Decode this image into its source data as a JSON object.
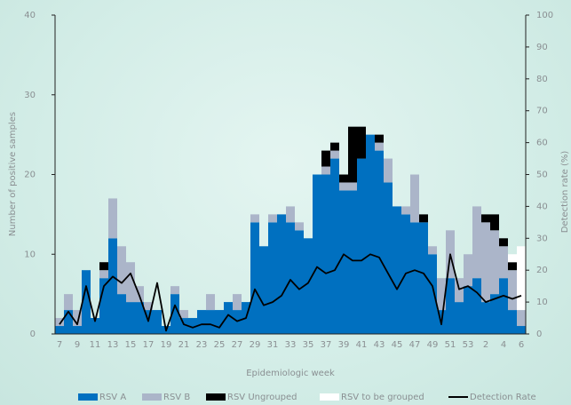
{
  "chart_data": {
    "type": "bar",
    "stacked": true,
    "x_label": "Epidemiologic week",
    "y_label": "Number of positive samples",
    "y2_label": "Detection rate (%)",
    "categories": [
      "7",
      null,
      "9",
      null,
      "11",
      null,
      "13",
      null,
      "15",
      null,
      "17",
      null,
      "19",
      null,
      "21",
      null,
      "23",
      null,
      "25",
      null,
      "27",
      null,
      "29",
      null,
      "31",
      null,
      "33",
      null,
      "35",
      null,
      "37",
      null,
      "39",
      null,
      "41",
      null,
      "43",
      null,
      "45",
      null,
      "47",
      null,
      "49",
      null,
      "51",
      null,
      "53",
      null,
      "2",
      null,
      "4",
      null,
      "6"
    ],
    "series": [
      {
        "name": "RSV A",
        "color": "#0070c0",
        "values": [
          1,
          3,
          1,
          8,
          2,
          7,
          12,
          5,
          4,
          4,
          3,
          3,
          1,
          5,
          2,
          2,
          3,
          3,
          3,
          4,
          3,
          4,
          14,
          11,
          14,
          15,
          14,
          13,
          12,
          20,
          20,
          22,
          18,
          18,
          22,
          25,
          23,
          19,
          16,
          15,
          14,
          14,
          10,
          3,
          7,
          4,
          6,
          7,
          4,
          5,
          7,
          3,
          1
        ]
      },
      {
        "name": "RSV B",
        "color": "#abb5c9",
        "values": [
          1,
          2,
          2,
          0,
          0,
          1,
          5,
          6,
          5,
          2,
          1,
          0,
          0,
          1,
          1,
          0,
          0,
          2,
          0,
          0,
          2,
          0,
          1,
          0,
          1,
          0,
          2,
          1,
          0,
          0,
          1,
          1,
          1,
          1,
          0,
          0,
          1,
          3,
          0,
          1,
          6,
          0,
          1,
          4,
          6,
          3,
          4,
          9,
          10,
          8,
          4,
          5,
          2
        ]
      },
      {
        "name": "RSV Ungrouped",
        "color": "#000000",
        "values": [
          0,
          0,
          0,
          0,
          0,
          1,
          0,
          0,
          0,
          0,
          0,
          0,
          0,
          0,
          0,
          0,
          0,
          0,
          0,
          0,
          0,
          0,
          0,
          0,
          0,
          0,
          0,
          0,
          0,
          0,
          2,
          1,
          1,
          7,
          4,
          0,
          1,
          0,
          0,
          0,
          0,
          1,
          0,
          0,
          0,
          0,
          0,
          0,
          1,
          2,
          1,
          1,
          0
        ]
      },
      {
        "name": "RSV to be grouped",
        "color": "#ffffff",
        "values": [
          0,
          0,
          0,
          0,
          0,
          0,
          0,
          0,
          0,
          0,
          0,
          0,
          0,
          0,
          0,
          0,
          0,
          0,
          0,
          0,
          0,
          0,
          0,
          0,
          0,
          0,
          0,
          0,
          0,
          0,
          0,
          0,
          0,
          0,
          0,
          0,
          0,
          0,
          0,
          0,
          0,
          0,
          0,
          0,
          0,
          0,
          0,
          0,
          0,
          0,
          0,
          1,
          8
        ]
      },
      {
        "name": "Detection Rate",
        "color": "#000000",
        "type": "line",
        "axis": "y2",
        "values": [
          3,
          7,
          3,
          15,
          4,
          15,
          18,
          16,
          19,
          12,
          4,
          16,
          1,
          9,
          3,
          2,
          3,
          3,
          2,
          6,
          4,
          5,
          14,
          9,
          10,
          12,
          17,
          14,
          16,
          21,
          19,
          20,
          25,
          23,
          23,
          25,
          24,
          19,
          14,
          19,
          20,
          19,
          15,
          3,
          25,
          14,
          15,
          13,
          10,
          11,
          12,
          11,
          12
        ]
      }
    ],
    "ylim": [
      0,
      40
    ],
    "yticks": [
      0,
      10,
      20,
      30,
      40
    ],
    "y2lim": [
      0,
      100
    ],
    "y2ticks": [
      0,
      10,
      20,
      30,
      40,
      50,
      60,
      70,
      80,
      90,
      100
    ]
  }
}
